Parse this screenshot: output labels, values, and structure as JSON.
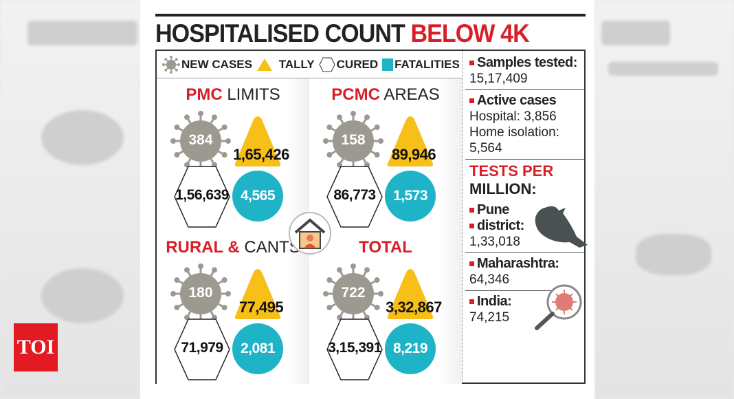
{
  "title": {
    "part1": "HOSPITALISED COUNT",
    "part2": "BELOW 4K"
  },
  "legend": {
    "new_cases": "NEW CASES",
    "tally": "TALLY",
    "cured": "CURED",
    "fatalities": "FATALITIES"
  },
  "colors": {
    "virus": "#9c9a90",
    "tally": "#f7bf17",
    "fatalities": "#1fb3c8",
    "accent": "#d71f27"
  },
  "quadrants": [
    {
      "head_bold": "PMC",
      "head_rest": " LIMITS",
      "new_cases": "384",
      "tally": "1,65,426",
      "cured": "1,56,639",
      "fatalities": "4,565"
    },
    {
      "head_bold": "PCMC",
      "head_rest": " AREAS",
      "new_cases": "158",
      "tally": "89,946",
      "cured": "86,773",
      "fatalities": "1,573"
    },
    {
      "head_bold": "RURAL &",
      "head_rest": " CANTS",
      "new_cases": "180",
      "tally": "77,495",
      "cured": "71,979",
      "fatalities": "2,081"
    },
    {
      "head_bold": "TOTAL",
      "head_rest": "",
      "new_cases": "722",
      "tally": "3,32,867",
      "cured": "3,15,391",
      "fatalities": "8,219"
    }
  ],
  "right": {
    "samples_label": "Samples tested:",
    "samples_value": "15,17,409",
    "active_label": "Active cases",
    "hospital": "Hospital: 3,856",
    "home_label": "Home isolation:",
    "home_value": "5,564",
    "tpm_red": "TESTS PER",
    "tpm_black": "MILLION:",
    "pune_label1": "Pune",
    "pune_label2": "district:",
    "pune_value": "1,33,018",
    "maha_label": "Maharashtra:",
    "maha_value": "64,346",
    "india_label": "India:",
    "india_value": "74,215"
  },
  "logo": "TOI"
}
